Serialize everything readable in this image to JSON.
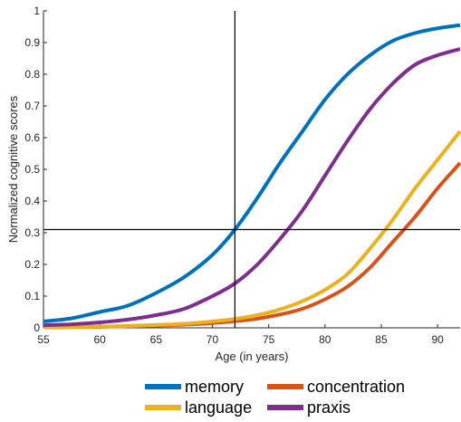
{
  "chart_data": {
    "type": "line",
    "title": "",
    "xlabel": "Age (in years)",
    "ylabel": "Normalized cognitive scores",
    "xlim": [
      55,
      92
    ],
    "ylim": [
      0,
      1
    ],
    "xticks": [
      55,
      60,
      65,
      70,
      75,
      80,
      85,
      90
    ],
    "yticks": [
      0,
      0.1,
      0.2,
      0.3,
      0.4,
      0.5,
      0.6,
      0.7,
      0.8,
      0.9,
      1
    ],
    "grid": false,
    "legend_position": "bottom",
    "reference_lines": {
      "vertical_x": 72,
      "horizontal_y": 0.31
    },
    "x": [
      55,
      57.5,
      60,
      62.5,
      65,
      67.5,
      70,
      72,
      74,
      76,
      78,
      80,
      82,
      84,
      86,
      88,
      90,
      92
    ],
    "series": [
      {
        "name": "memory",
        "color": "#0072BD",
        "values": [
          0.02,
          0.03,
          0.05,
          0.07,
          0.11,
          0.16,
          0.23,
          0.31,
          0.41,
          0.52,
          0.62,
          0.72,
          0.8,
          0.86,
          0.905,
          0.93,
          0.945,
          0.955
        ]
      },
      {
        "name": "concentration",
        "color": "#D95319",
        "values": [
          0.002,
          0.002,
          0.003,
          0.005,
          0.007,
          0.01,
          0.015,
          0.021,
          0.029,
          0.042,
          0.06,
          0.09,
          0.13,
          0.19,
          0.27,
          0.35,
          0.44,
          0.52
        ]
      },
      {
        "name": "language",
        "color": "#EDB120",
        "values": [
          0.002,
          0.003,
          0.004,
          0.006,
          0.009,
          0.013,
          0.02,
          0.028,
          0.04,
          0.058,
          0.084,
          0.12,
          0.17,
          0.25,
          0.34,
          0.44,
          0.53,
          0.62
        ]
      },
      {
        "name": "praxis",
        "color": "#7E2F8E",
        "values": [
          0.008,
          0.011,
          0.017,
          0.026,
          0.04,
          0.06,
          0.1,
          0.14,
          0.2,
          0.28,
          0.37,
          0.48,
          0.59,
          0.69,
          0.77,
          0.83,
          0.86,
          0.88
        ]
      }
    ]
  }
}
